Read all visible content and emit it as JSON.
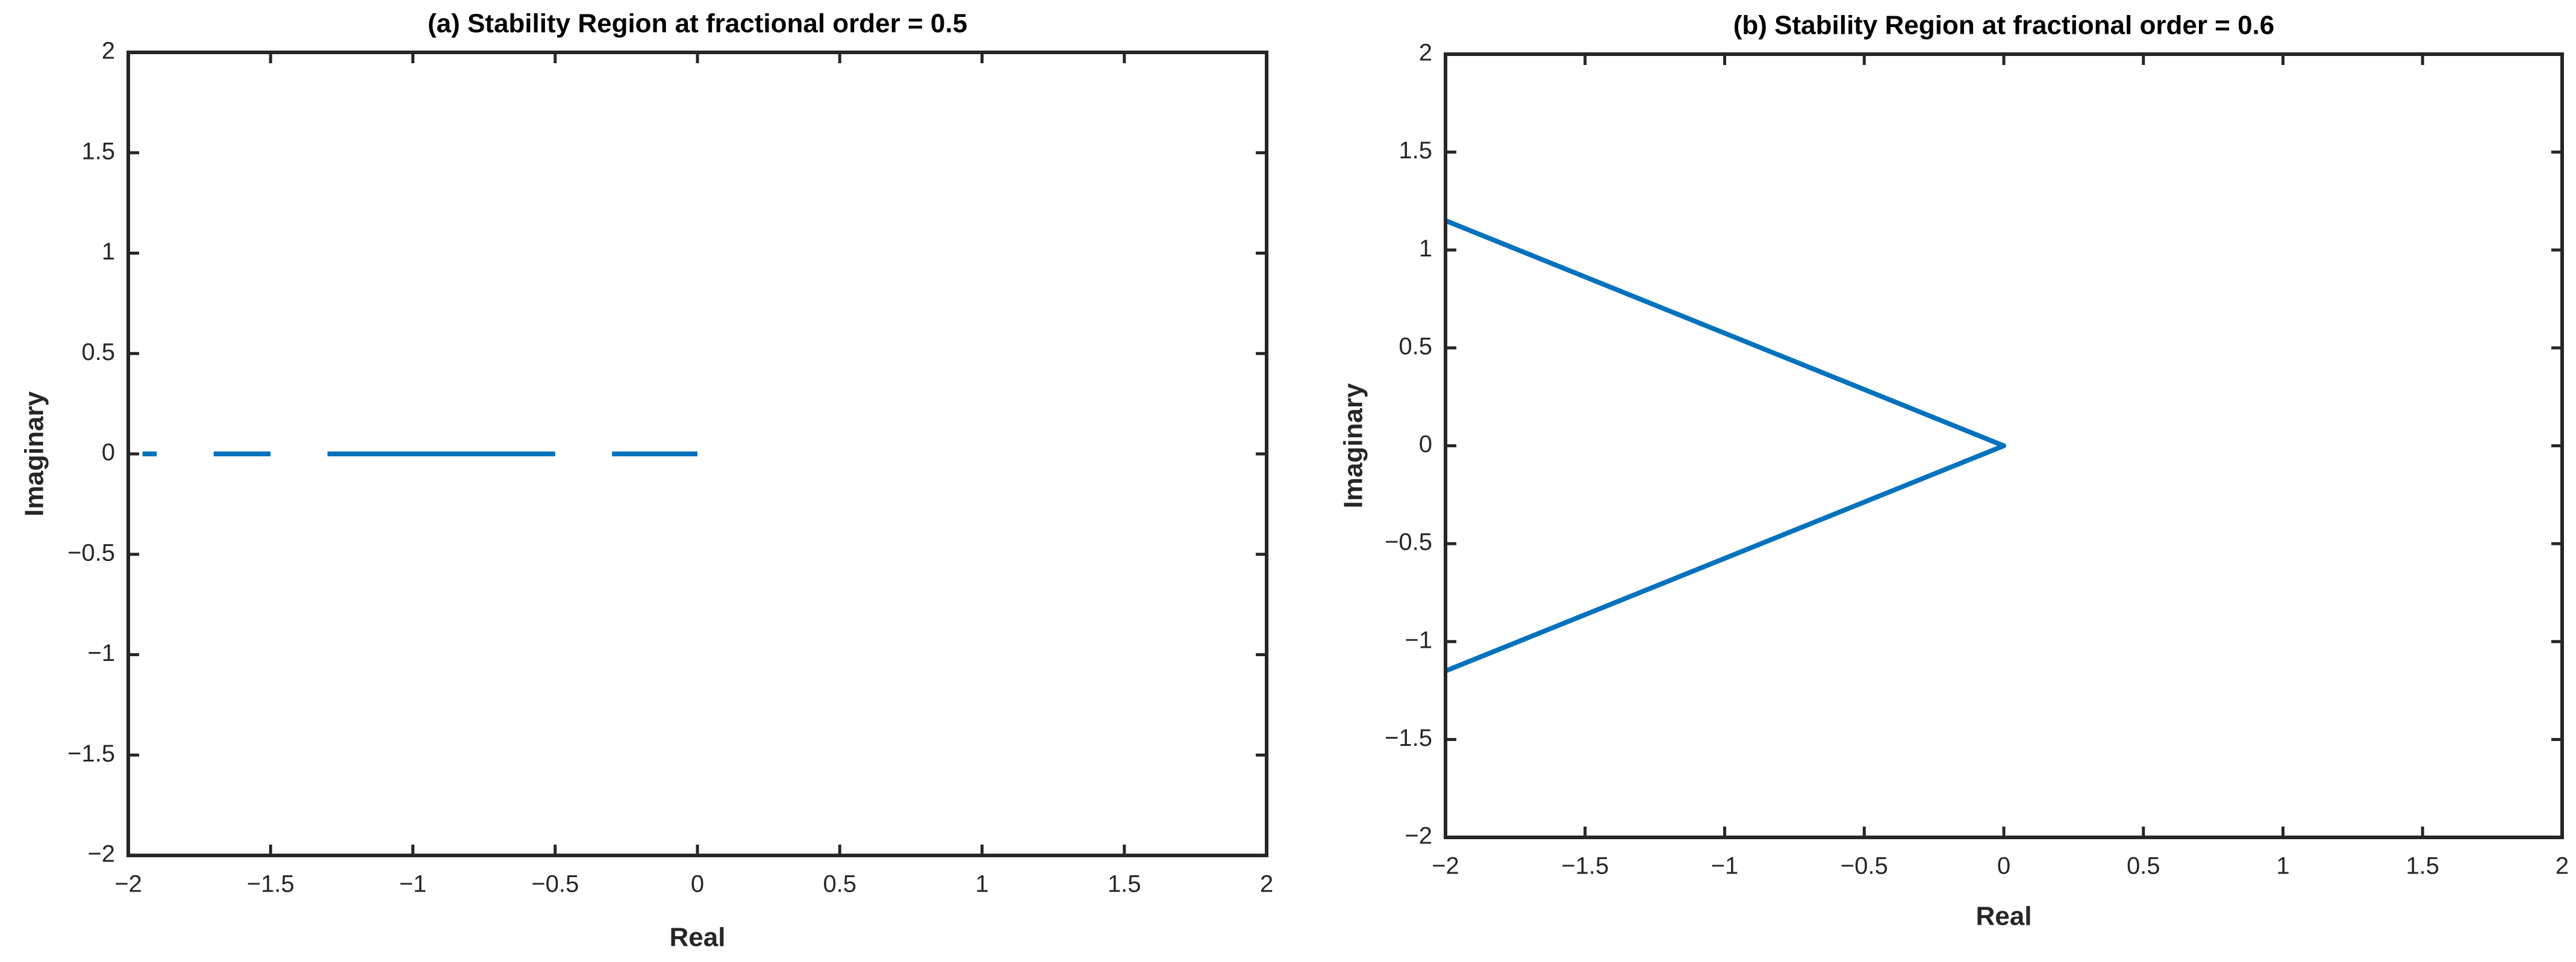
{
  "chart_data": [
    {
      "type": "line",
      "title": "(a) Stability Region at fractional order = 0.5",
      "xlabel": "Real",
      "ylabel": "Imaginary",
      "x": [
        -1.95,
        -1.9,
        -1.8,
        -1.7,
        -1.5,
        -1.4,
        -1.3,
        -0.5,
        -0.4,
        -0.3,
        0
      ],
      "values": [
        0,
        0,
        null,
        0,
        0,
        null,
        0,
        0,
        null,
        0,
        0
      ],
      "color": "#0072bd",
      "xlim": [
        -2,
        2
      ],
      "ylim": [
        -2,
        2
      ],
      "xticks": [
        {
          "value": -2,
          "label": "−2"
        },
        {
          "value": -1.5,
          "label": "−1.5"
        },
        {
          "value": -1,
          "label": "−1"
        },
        {
          "value": -0.5,
          "label": "−0.5"
        },
        0,
        0.5,
        1,
        1.5,
        2
      ],
      "yticks": [
        {
          "value": -2,
          "label": "−2"
        },
        {
          "value": -1.5,
          "label": "−1.5"
        },
        {
          "value": -1,
          "label": "−1"
        },
        {
          "value": -0.5,
          "label": "−0.5"
        },
        0,
        0.5,
        1,
        1.5,
        2
      ]
    },
    {
      "type": "line",
      "title": "(b) Stability Region at fractional order = 0.6",
      "xlabel": "Real",
      "ylabel": "Imaginary",
      "x": [
        -2,
        0,
        -2
      ],
      "values": [
        1.15,
        0,
        -1.15
      ],
      "color": "#0072bd",
      "xlim": [
        -2,
        2
      ],
      "ylim": [
        -2,
        2
      ],
      "xticks": [
        {
          "value": -2,
          "label": "−2"
        },
        {
          "value": -1.5,
          "label": "−1.5"
        },
        {
          "value": -1,
          "label": "−1"
        },
        {
          "value": -0.5,
          "label": "−0.5"
        },
        0,
        0.5,
        1,
        1.5,
        2
      ],
      "yticks": [
        {
          "value": -2,
          "label": "−2"
        },
        {
          "value": -1.5,
          "label": "−1.5"
        },
        {
          "value": -1,
          "label": "−1"
        },
        {
          "value": -0.5,
          "label": "−0.5"
        },
        0,
        0.5,
        1,
        1.5,
        2
      ]
    }
  ]
}
